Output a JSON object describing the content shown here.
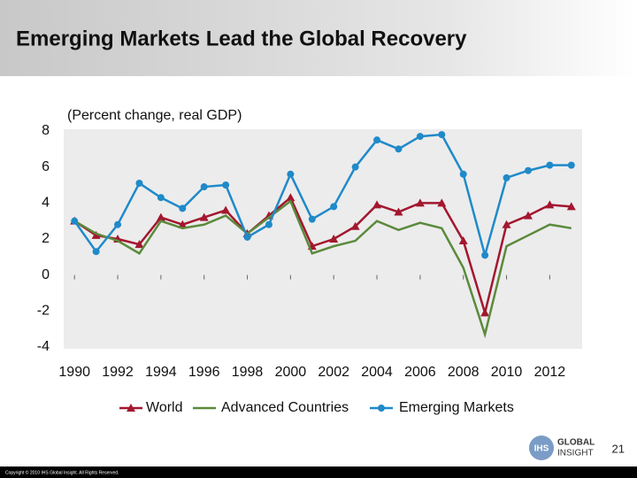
{
  "chart_data": {
    "type": "line",
    "title": "Emerging Markets Lead the Global Recovery",
    "subtitle": "(Percent change, real GDP)",
    "x": [
      1990,
      1991,
      1992,
      1993,
      1994,
      1995,
      1996,
      1997,
      1998,
      1999,
      2000,
      2001,
      2002,
      2003,
      2004,
      2005,
      2006,
      2007,
      2008,
      2009,
      2010,
      2011,
      2012,
      2013
    ],
    "xlim": [
      1989.5,
      2013.5
    ],
    "xticks": [
      1990,
      1992,
      1994,
      1996,
      1998,
      2000,
      2002,
      2004,
      2006,
      2008,
      2010,
      2012
    ],
    "ylim": [
      -4,
      8
    ],
    "yticks": [
      -4,
      -2,
      0,
      2,
      4,
      6,
      8
    ],
    "grid": false,
    "legend": "bottom",
    "series": [
      {
        "name": "World",
        "color": "#a3172f",
        "marker": "triangle",
        "values": [
          3.0,
          2.2,
          2.0,
          1.7,
          3.2,
          2.8,
          3.2,
          3.6,
          2.3,
          3.3,
          4.3,
          1.6,
          2.0,
          2.7,
          3.9,
          3.5,
          4.0,
          4.0,
          1.9,
          -2.1,
          2.8,
          3.3,
          3.9,
          3.8
        ]
      },
      {
        "name": "Advanced Countries",
        "color": "#5b8a3c",
        "marker": "none",
        "values": [
          3.0,
          2.3,
          1.9,
          1.2,
          3.0,
          2.6,
          2.8,
          3.3,
          2.3,
          3.2,
          4.1,
          1.2,
          1.6,
          1.9,
          3.0,
          2.5,
          2.9,
          2.6,
          0.4,
          -3.3,
          1.6,
          2.2,
          2.8,
          2.6
        ]
      },
      {
        "name": "Emerging Markets",
        "color": "#1f8ac9",
        "marker": "circle",
        "values": [
          3.0,
          1.3,
          2.8,
          5.1,
          4.3,
          3.7,
          4.9,
          5.0,
          2.1,
          2.8,
          5.6,
          3.1,
          3.8,
          6.0,
          7.5,
          7.0,
          7.7,
          7.8,
          5.6,
          1.1,
          5.4,
          5.8,
          6.1,
          6.1
        ]
      }
    ]
  },
  "footer": {
    "page_number": "21",
    "copyright": "Copyright © 2010 IHS Global Insight. All Rights Reserved.",
    "logo_mark": "IHS",
    "logo_line1": "GLOBAL",
    "logo_line2": "INSIGHT"
  }
}
